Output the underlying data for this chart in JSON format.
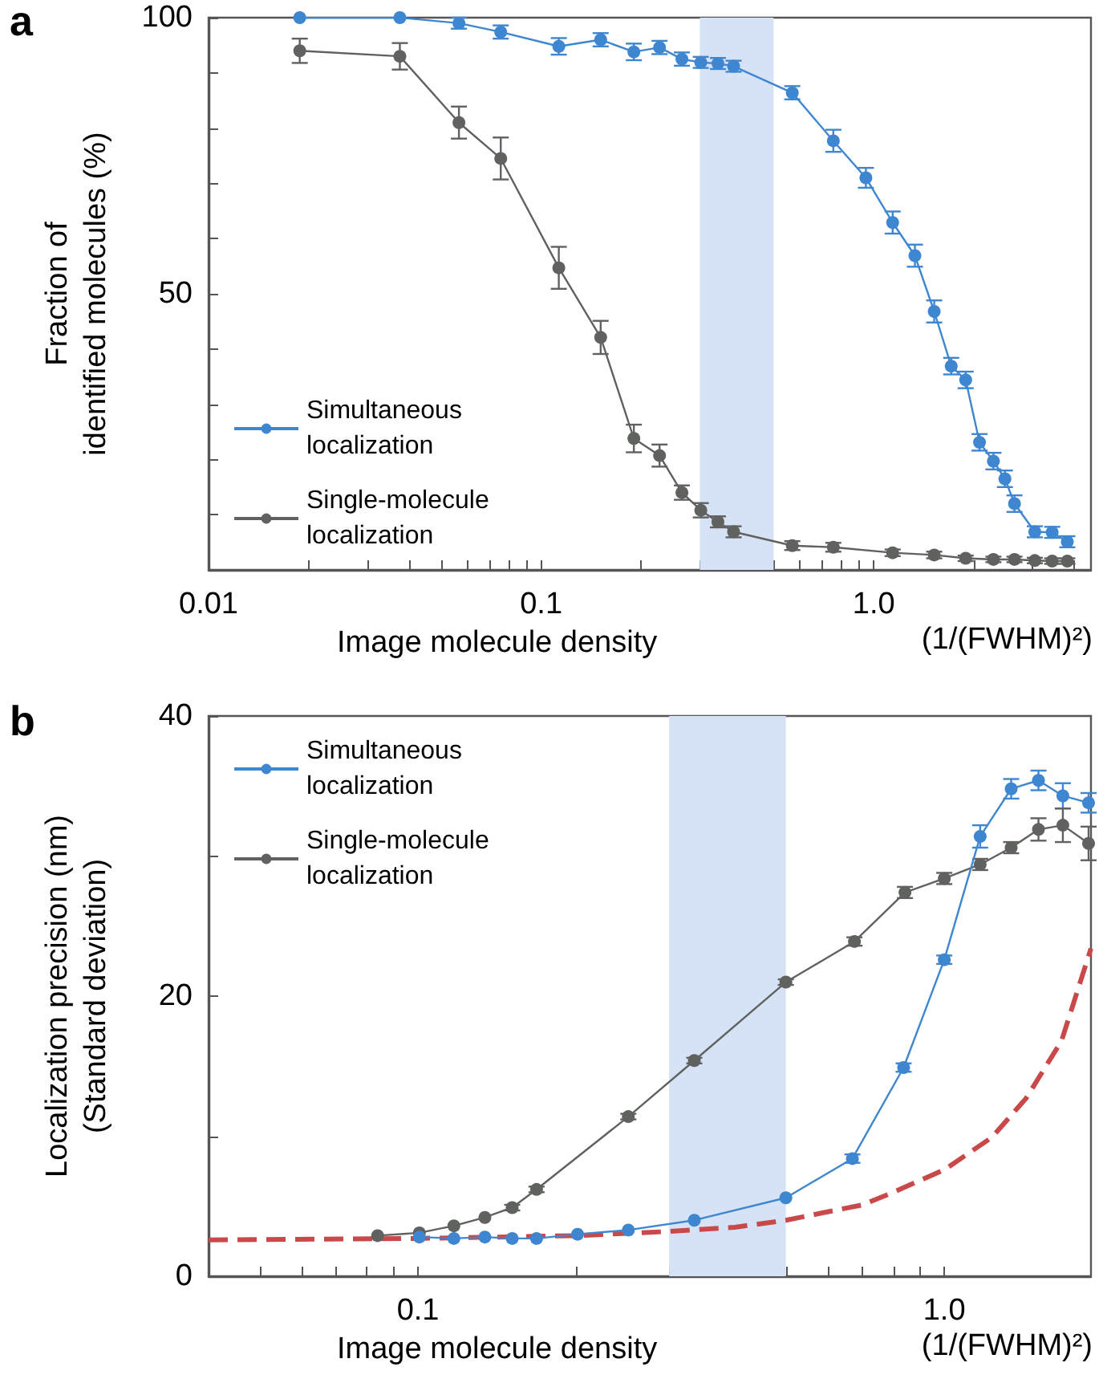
{
  "chart_data": [
    {
      "type": "line",
      "title": "a",
      "xlabel": "Image molecule density",
      "ylabel": "Fraction of\nidentified molecules (%)",
      "annotations": [
        "(1/(FWHM)²)"
      ],
      "log": "x",
      "xlim": [
        0.01,
        4.5
      ],
      "xticks": [
        {
          "value": 0.01,
          "label": "0.01"
        },
        {
          "value": 0.02,
          "label": null
        },
        {
          "value": 0.03,
          "label": null
        },
        {
          "value": 0.04,
          "label": null
        },
        {
          "value": 0.05,
          "label": null
        },
        {
          "value": 0.06,
          "label": null
        },
        {
          "value": 0.07,
          "label": null
        },
        {
          "value": 0.08,
          "label": null
        },
        {
          "value": 0.09,
          "label": null
        },
        {
          "value": 0.1,
          "label": "0.1"
        },
        {
          "value": 0.2,
          "label": null
        },
        {
          "value": 0.3,
          "label": null
        },
        {
          "value": 0.4,
          "label": null
        },
        {
          "value": 0.5,
          "label": null
        },
        {
          "value": 0.6,
          "label": null
        },
        {
          "value": 0.7,
          "label": null
        },
        {
          "value": 0.8,
          "label": null
        },
        {
          "value": 0.9,
          "label": null
        },
        {
          "value": 1,
          "label": "1.0"
        },
        {
          "value": 2,
          "label": null
        },
        {
          "value": 3,
          "label": null
        },
        {
          "value": 4,
          "label": null
        }
      ],
      "ylim": [
        0,
        100
      ],
      "yticks": [
        {
          "value": 0,
          "label": null
        },
        {
          "value": 10,
          "label": null
        },
        {
          "value": 20,
          "label": null
        },
        {
          "value": 30,
          "label": null
        },
        {
          "value": 40,
          "label": null
        },
        50,
        {
          "value": 60,
          "label": null
        },
        {
          "value": 70,
          "label": null
        },
        {
          "value": 80,
          "label": null
        },
        {
          "value": 90,
          "label": null
        },
        100
      ],
      "grid": false,
      "legend": "bottom left",
      "marker": "circle",
      "line_style": "solid",
      "bands": [
        {
          "axis": "x",
          "from": 0.3,
          "to": 0.5,
          "color": "#d6e3f6"
        }
      ],
      "series": [
        {
          "name": "Simultaneous localization",
          "color": "#3f86d0",
          "x": [
            0.0188,
            0.0376,
            0.0566,
            0.0756,
            0.113,
            0.151,
            0.19,
            0.227,
            0.265,
            0.302,
            0.34,
            0.379,
            0.569,
            0.756,
            0.947,
            1.14,
            1.33,
            1.52,
            1.71,
            1.89,
            2.08,
            2.29,
            2.48,
            2.65,
            3.05,
            3.44,
            3.82
          ],
          "values": [
            100,
            100,
            99,
            97.4,
            94.8,
            96,
            93.8,
            94.6,
            92.5,
            91.9,
            91.7,
            91.2,
            86.4,
            77.7,
            71,
            62.9,
            56.9,
            46.8,
            36.9,
            34.4,
            23.1,
            19.7,
            16.5,
            12,
            6.9,
            6.8,
            5.1
          ],
          "errors": [
            null,
            null,
            1,
            1.2,
            1.5,
            1.2,
            1.5,
            1.2,
            1.2,
            1,
            1,
            1,
            1.2,
            2,
            1.8,
            2,
            2,
            2,
            1.5,
            1.5,
            1.5,
            1.5,
            1.5,
            1.5,
            1,
            1,
            1
          ]
        },
        {
          "name": "Single-molecule localization",
          "color": "#5f625f",
          "x": [
            0.0188,
            0.0376,
            0.0566,
            0.0756,
            0.113,
            0.151,
            0.19,
            0.227,
            0.265,
            0.302,
            0.34,
            0.379,
            0.569,
            0.756,
            1.14,
            1.52,
            1.89,
            2.29,
            2.65,
            3.05,
            3.44,
            3.82
          ],
          "values": [
            94,
            93,
            81,
            74.5,
            54.7,
            42.1,
            23.8,
            20.7,
            14,
            10.8,
            8.7,
            6.9,
            4.4,
            4.1,
            3.1,
            2.7,
            2.1,
            1.9,
            1.9,
            1.7,
            1.6,
            1.6
          ],
          "errors": [
            2.2,
            2.4,
            2.9,
            3.8,
            3.8,
            3,
            2.5,
            2,
            1.3,
            1.3,
            1,
            1,
            0.8,
            0.8,
            0.6,
            0.6,
            0.5,
            0.5,
            0.5,
            0.5,
            0.5,
            0.5
          ]
        }
      ]
    },
    {
      "type": "line",
      "title": "b",
      "xlabel": "Image molecule density",
      "ylabel": "Localization precision (nm)\n(Standard deviation)",
      "annotations": [
        "(1/(FWHM)²)"
      ],
      "log": "x",
      "xlim": [
        0.04,
        1.9
      ],
      "xticks": [
        {
          "value": 0.05,
          "label": null
        },
        {
          "value": 0.06,
          "label": null
        },
        {
          "value": 0.07,
          "label": null
        },
        {
          "value": 0.08,
          "label": null
        },
        {
          "value": 0.09,
          "label": null
        },
        {
          "value": 0.1,
          "label": "0.1"
        },
        {
          "value": 0.2,
          "label": null
        },
        {
          "value": 0.3,
          "label": null
        },
        {
          "value": 0.4,
          "label": null
        },
        {
          "value": 0.5,
          "label": null
        },
        {
          "value": 0.6,
          "label": null
        },
        {
          "value": 0.7,
          "label": null
        },
        {
          "value": 0.8,
          "label": null
        },
        {
          "value": 0.9,
          "label": null
        },
        {
          "value": 1,
          "label": "1.0"
        }
      ],
      "ylim": [
        0,
        40
      ],
      "yticks": [
        0,
        {
          "value": 10,
          "label": null
        },
        20,
        {
          "value": 30,
          "label": null
        },
        40
      ],
      "grid": false,
      "legend": "top left",
      "marker": "circle",
      "line_style": "solid",
      "bands": [
        {
          "axis": "x",
          "from": 0.3,
          "to": 0.5,
          "color": "#d6e3f6"
        }
      ],
      "series": [
        {
          "name": "Simultaneous localization",
          "color": "#3f86d0",
          "x": [
            0.1006,
            0.117,
            0.134,
            0.151,
            0.168,
            0.201,
            0.251,
            0.335,
            0.5,
            0.669,
            0.837,
            1.0,
            1.17,
            1.34,
            1.51,
            1.68,
            1.88
          ],
          "values": [
            2.8,
            2.7,
            2.8,
            2.7,
            2.7,
            3.0,
            3.3,
            4,
            5.6,
            8.4,
            14.9,
            22.6,
            31.4,
            34.8,
            35.4,
            34.3,
            33.8
          ],
          "errors": [
            null,
            null,
            null,
            null,
            null,
            null,
            null,
            null,
            null,
            0.3,
            0.3,
            0.3,
            0.8,
            0.7,
            0.7,
            0.9,
            0.7
          ]
        },
        {
          "name": "Single-molecule localization",
          "color": "#5f625f",
          "x": [
            0.0838,
            0.1006,
            0.117,
            0.134,
            0.151,
            0.168,
            0.251,
            0.335,
            0.5,
            0.675,
            0.842,
            1.0,
            1.17,
            1.34,
            1.51,
            1.68,
            1.88
          ],
          "values": [
            2.9,
            3.1,
            3.6,
            4.2,
            4.9,
            6.2,
            11.4,
            15.4,
            21,
            23.9,
            27.4,
            28.4,
            29.4,
            30.6,
            31.9,
            32.2,
            30.9
          ],
          "errors": [
            null,
            null,
            null,
            null,
            0.2,
            0.2,
            0.2,
            0.2,
            0.2,
            0.3,
            0.4,
            0.4,
            0.4,
            0.4,
            0.8,
            1.2,
            1.2
          ]
        },
        {
          "type": "line",
          "color": "#c9494a",
          "line_style": "dashed",
          "marker": "none",
          "x": [
            0.04,
            0.1,
            0.2,
            0.3,
            0.4,
            0.5,
            0.7,
            0.8,
            1.0,
            1.23,
            1.43,
            1.67,
            1.9
          ],
          "values": [
            2.6,
            2.7,
            2.9,
            3.2,
            3.5,
            4.0,
            5.1,
            6.0,
            7.6,
            9.9,
            12.7,
            16.8,
            23.4
          ]
        }
      ]
    }
  ]
}
